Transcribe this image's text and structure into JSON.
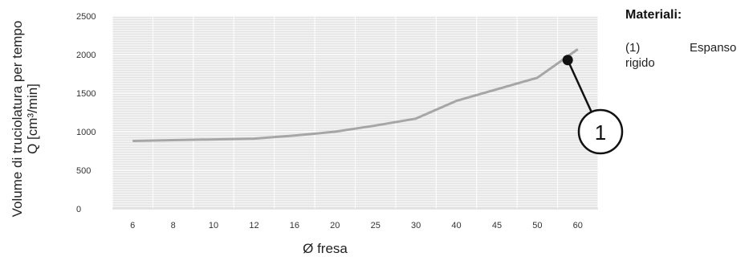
{
  "chart_data": {
    "type": "line",
    "categories": [
      "6",
      "8",
      "10",
      "12",
      "16",
      "20",
      "25",
      "30",
      "40",
      "45",
      "50",
      "60"
    ],
    "series": [
      {
        "values": [
          880,
          890,
          900,
          910,
          950,
          1000,
          1080,
          1170,
          1400,
          1550,
          1700,
          2070
        ],
        "color": "#a6a6a6"
      }
    ],
    "yticks": [
      0,
      500,
      1000,
      1500,
      2000,
      2500
    ],
    "ylim": [
      0,
      2500
    ],
    "grid": true,
    "xlabel": "Ø fresa",
    "ylabel_line1": "Volume di truciolatura per tempo",
    "ylabel_line2": "Q [cm³/min]",
    "annotation": {
      "label": "1",
      "point_x_index": 10.75,
      "point_y": 1930
    }
  },
  "legend": {
    "title": "Materiali:",
    "item_number": "(1)",
    "item_word1": "Espanso",
    "item_word2": "rigido"
  }
}
